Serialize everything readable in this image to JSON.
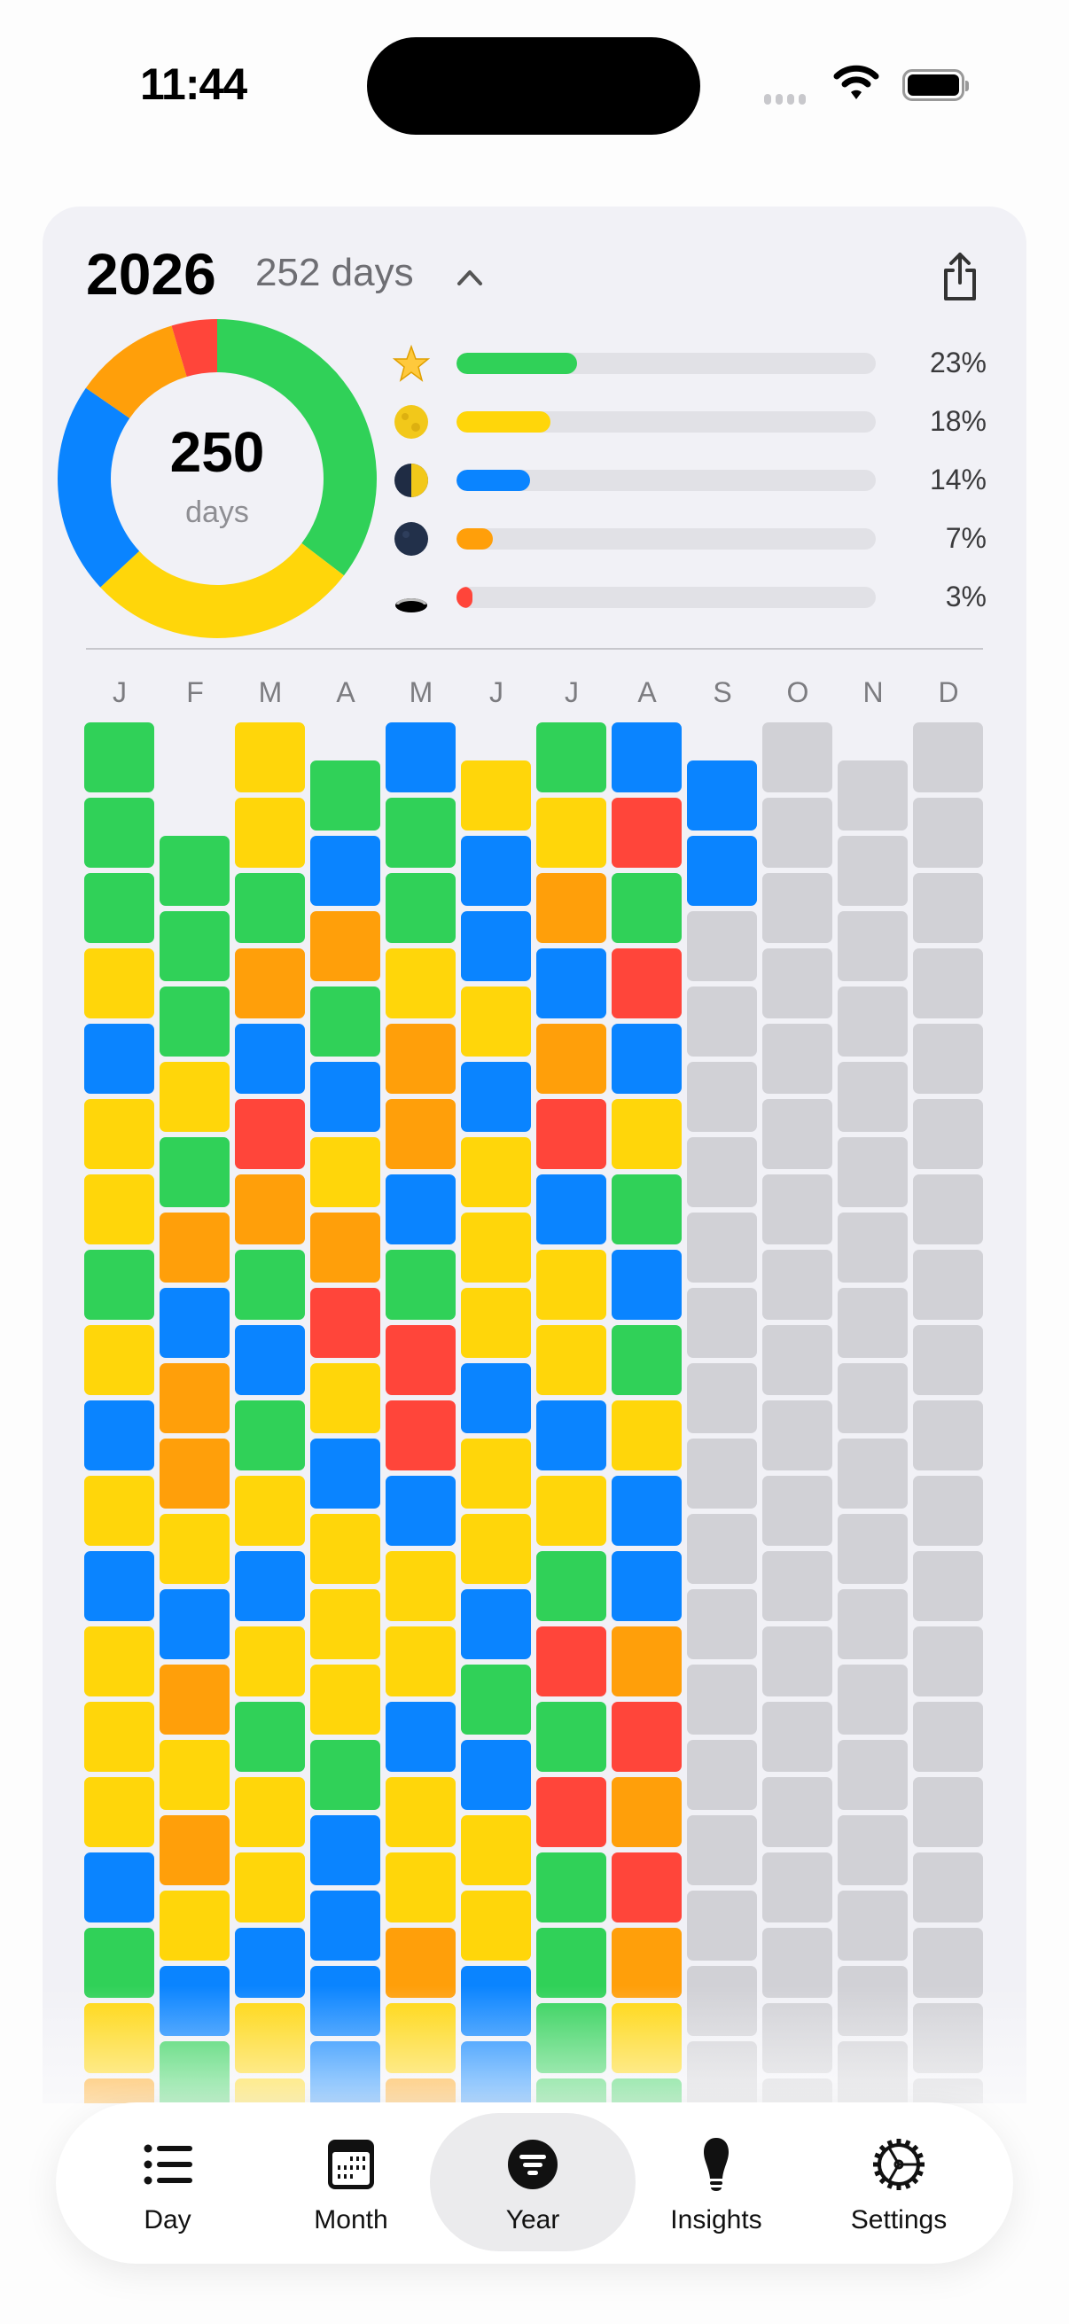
{
  "status_bar": {
    "time": "11:44"
  },
  "header": {
    "year": "2026",
    "days_label": "252 days",
    "collapse_icon": "chevron-up-icon",
    "share_icon": "share-icon"
  },
  "summary": {
    "total": "250",
    "total_unit": "days"
  },
  "colors": {
    "G": "#30D158",
    "Y": "#FFD60A",
    "B": "#0A84FF",
    "O": "#FF9F0A",
    "R": "#FF453A",
    "E": "#D1D1D6"
  },
  "legend": [
    {
      "icon": "star-icon",
      "color": "#30D158",
      "percent": 23,
      "label": "23%"
    },
    {
      "icon": "full-moon-icon",
      "color": "#FFD60A",
      "percent": 18,
      "label": "18%"
    },
    {
      "icon": "last-quarter-moon-icon",
      "color": "#0A84FF",
      "percent": 14,
      "label": "14%"
    },
    {
      "icon": "new-moon-icon",
      "color": "#FF9F0A",
      "percent": 7,
      "label": "7%"
    },
    {
      "icon": "hole-icon",
      "color": "#FF453A",
      "percent": 3,
      "label": "3%"
    }
  ],
  "months": [
    "J",
    "F",
    "M",
    "A",
    "M",
    "J",
    "J",
    "A",
    "S",
    "O",
    "N",
    "D"
  ],
  "grid": [
    "GGGYBYYGYBYBYYYBGYO",
    "GGGYGOBOOYBOYOYBG",
    "YYGOBROGBGYBYGYYBYY",
    "GBOGBYORYBYYYGBBBB",
    "BGGYOOBGRRBYYBYYOYO",
    "YBBYBYYYBYYBGBYYBB",
    "GYOBORBYYBYGRGRGGGG",
    "BRGRBYGBGYBBOROROYG",
    "BBEEEEEEEEEEEEEEEE",
    "EEEEEEEEEEEEEEEEEEE",
    "EEEEEEEEEEEEEEEEEE",
    "EEEEEEEEEEEEEEEEEEE"
  ],
  "tabs": [
    {
      "label": "Day",
      "icon": "list-icon"
    },
    {
      "label": "Month",
      "icon": "calendar-icon"
    },
    {
      "label": "Year",
      "icon": "year-filter-icon",
      "selected": true
    },
    {
      "label": "Insights",
      "icon": "lightbulb-icon"
    },
    {
      "label": "Settings",
      "icon": "gear-icon"
    }
  ]
}
